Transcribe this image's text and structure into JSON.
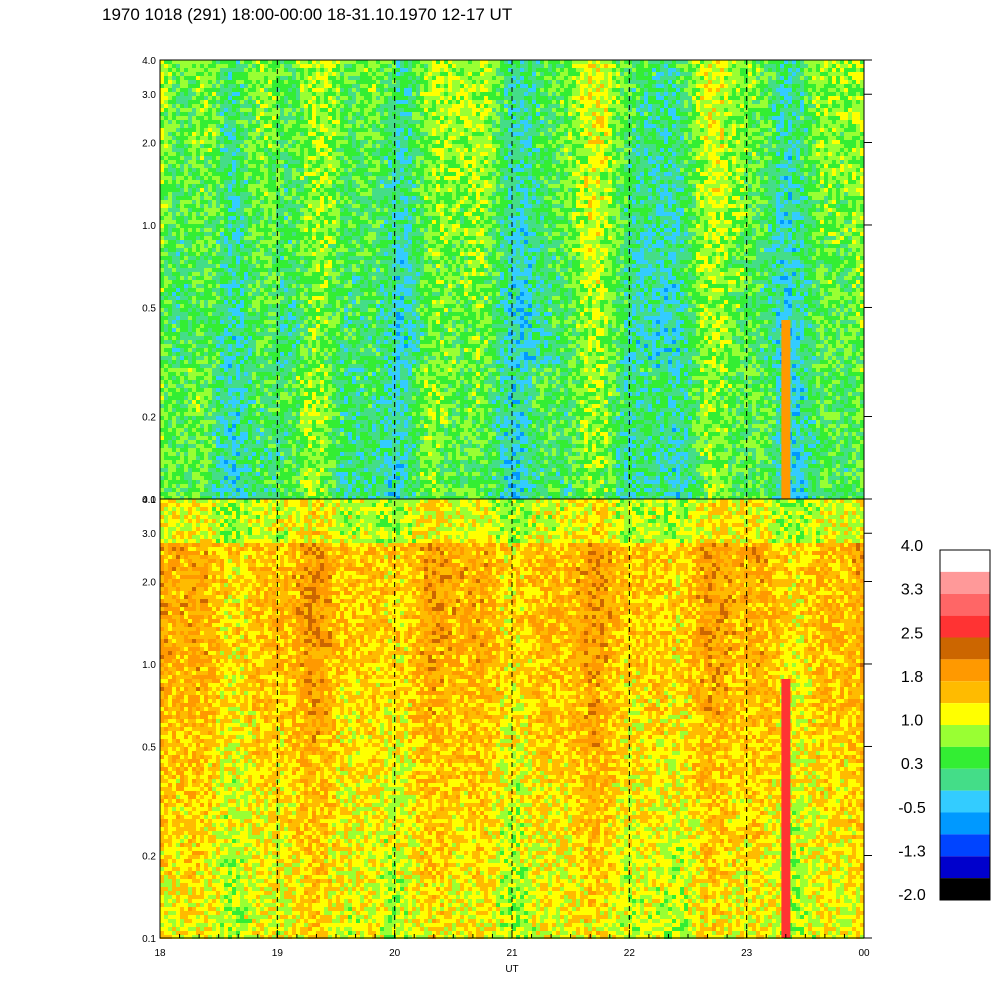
{
  "header": {
    "title": "1970 1018 (291) 18:00-00:00 18-31.10.1970  12-17 UT"
  },
  "chart_data": {
    "type": "heatmap",
    "title": "1970 1018 (291) 18:00-00:00 18-31.10.1970  12-17 UT",
    "xlabel": "UT",
    "x_ticks": [
      "18",
      "19",
      "20",
      "21",
      "22",
      "23",
      "00"
    ],
    "x_range_hours": [
      18,
      24
    ],
    "y_scale": "log",
    "y_range": [
      0.1,
      4.0
    ],
    "y_ticks": [
      "0.1",
      "0.2",
      "0.5",
      "1.0",
      "2.0",
      "3.0",
      "4.0"
    ],
    "y_tick_values": [
      0.1,
      0.2,
      0.5,
      1.0,
      2.0,
      3.0,
      4.0
    ],
    "dashed_hour_lines": [
      19,
      20,
      21,
      22,
      23
    ],
    "panels": [
      {
        "name": "upper",
        "dominant_level_range": [
          -1.3,
          1.0
        ]
      },
      {
        "name": "lower",
        "dominant_level_range": [
          0.3,
          2.5
        ]
      }
    ],
    "colorbar": {
      "labels": [
        "4.0",
        "3.3",
        "2.5",
        "1.8",
        "1.0",
        "0.3",
        "-0.5",
        "-1.3",
        "-2.0"
      ],
      "colors": [
        "#ffffff",
        "#ff9999",
        "#ff6666",
        "#ff3333",
        "#cc6600",
        "#ff9900",
        "#ffbb00",
        "#ffff00",
        "#99ff33",
        "#33ee33",
        "#44dd88",
        "#33ccff",
        "#0099ff",
        "#0044ff",
        "#0000cc",
        "#000000"
      ]
    }
  }
}
